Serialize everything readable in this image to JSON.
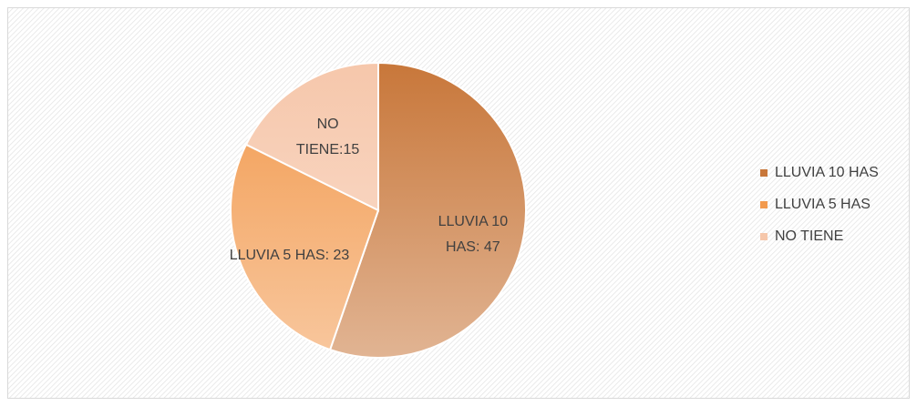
{
  "chart_data": {
    "type": "pie",
    "categories": [
      "LLUVIA 10 HAS",
      "LLUVIA 5 HAS",
      "NO TIENE"
    ],
    "values": [
      47,
      23,
      15
    ],
    "value_labels": [
      "LLUVIA 10 HAS: 47",
      "LLUVIA 5 HAS: 23",
      "NO TIENE:15"
    ],
    "colors": [
      "#c8773a",
      "#f29a4e",
      "#f6c7ab"
    ],
    "legend": "right"
  }
}
